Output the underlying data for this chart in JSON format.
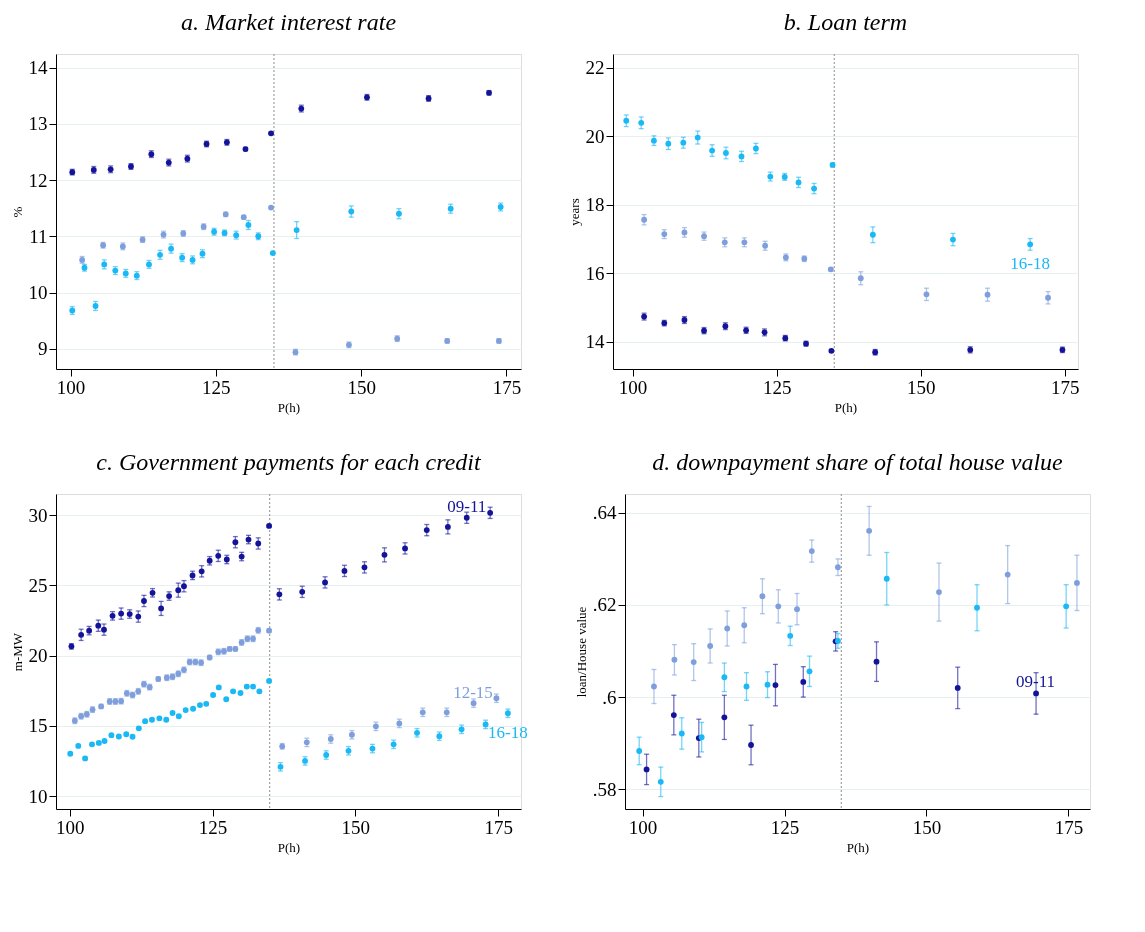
{
  "chart_data": [
    {
      "type": "scatter",
      "title": "a. Market interest rate",
      "xlabel": "P(h)",
      "ylabel": "%",
      "xlim": [
        97.5,
        177.5
      ],
      "ylim": [
        8.64,
        14.24
      ],
      "xticks": [
        100,
        125,
        150,
        175
      ],
      "yticks": [
        9,
        10,
        11,
        12,
        13,
        14
      ],
      "grid": "y",
      "marker": "circle",
      "ref_lines": [
        {
          "axis": "x",
          "value": 135,
          "color": "#a0a0a0",
          "line_style": "dotted"
        }
      ],
      "series": [
        {
          "color": "#14149a",
          "x": [
            100.3,
            104.0,
            106.9,
            110.4,
            113.9,
            116.9,
            120.1,
            123.4,
            126.9,
            130.1,
            134.5,
            139.7,
            151.0,
            161.6,
            172.0
          ],
          "values": [
            12.14,
            12.18,
            12.19,
            12.24,
            12.46,
            12.31,
            12.38,
            12.64,
            12.67,
            12.55,
            12.83,
            13.27,
            13.47,
            13.45,
            13.55
          ],
          "errors": [
            0.05,
            0.06,
            0.06,
            0.05,
            0.06,
            0.06,
            0.06,
            0.05,
            0.05,
            0.03,
            0.02,
            0.06,
            0.05,
            0.05,
            0.04
          ]
        },
        {
          "color": "#7f9fdc",
          "x": [
            102.0,
            105.6,
            109.0,
            112.4,
            116.0,
            119.4,
            122.9,
            126.7,
            129.8,
            134.5,
            138.7,
            147.9,
            156.2,
            164.8,
            173.7
          ],
          "values": [
            10.58,
            10.84,
            10.82,
            10.94,
            11.03,
            11.05,
            11.17,
            11.39,
            11.34,
            11.51,
            8.94,
            9.07,
            9.18,
            9.14,
            9.14
          ],
          "errors": [
            0.06,
            0.05,
            0.06,
            0.05,
            0.06,
            0.05,
            0.05,
            0.04,
            0.03,
            0.02,
            0.05,
            0.05,
            0.05,
            0.04,
            0.04
          ]
        },
        {
          "color": "#1ab8f5",
          "x": [
            100.3,
            102.4,
            104.3,
            105.8,
            107.7,
            109.5,
            111.4,
            113.5,
            115.4,
            117.3,
            119.2,
            121.0,
            122.7,
            124.7,
            126.5,
            128.5,
            130.6,
            132.3,
            134.8,
            138.9,
            148.3,
            156.5,
            165.4,
            174.0
          ],
          "values": [
            9.68,
            10.44,
            9.76,
            10.5,
            10.39,
            10.34,
            10.3,
            10.5,
            10.67,
            10.78,
            10.62,
            10.58,
            10.69,
            11.08,
            11.06,
            11.02,
            11.2,
            11.0,
            10.7,
            11.11,
            11.44,
            11.4,
            11.49,
            11.52
          ],
          "errors": [
            0.07,
            0.06,
            0.08,
            0.08,
            0.07,
            0.07,
            0.07,
            0.07,
            0.08,
            0.08,
            0.07,
            0.07,
            0.07,
            0.06,
            0.05,
            0.07,
            0.08,
            0.06,
            0.02,
            0.15,
            0.1,
            0.09,
            0.08,
            0.07
          ]
        }
      ]
    },
    {
      "type": "scatter",
      "title": "b. Loan term",
      "xlabel": "P(h)",
      "ylabel": "years",
      "xlim": [
        96.6,
        177.3
      ],
      "ylim": [
        13.2,
        22.4
      ],
      "xticks": [
        100,
        125,
        150,
        175
      ],
      "yticks": [
        14,
        16,
        18,
        20,
        22
      ],
      "grid": "y",
      "marker": "circle",
      "ref_lines": [
        {
          "axis": "x",
          "value": 135,
          "color": "#a0a0a0",
          "line_style": "dotted"
        }
      ],
      "series": [
        {
          "color": "#14149a",
          "x": [
            102.0,
            105.5,
            109.0,
            112.4,
            116.1,
            119.7,
            122.9,
            126.5,
            130.1,
            134.5,
            142.1,
            158.6,
            174.6
          ],
          "values": [
            14.73,
            14.54,
            14.63,
            14.32,
            14.45,
            14.33,
            14.27,
            14.1,
            13.94,
            13.73,
            13.69,
            13.76,
            13.76
          ],
          "errors": [
            0.1,
            0.08,
            0.1,
            0.09,
            0.1,
            0.09,
            0.1,
            0.08,
            0.07,
            0.04,
            0.08,
            0.09,
            0.08
          ]
        },
        {
          "color": "#7f9fdc",
          "x": [
            102.0,
            105.5,
            109.0,
            112.4,
            116.0,
            119.4,
            123.0,
            126.6,
            129.8,
            134.4,
            139.6,
            151.0,
            161.6,
            172.1
          ],
          "values": [
            17.56,
            17.14,
            17.19,
            17.08,
            16.9,
            16.9,
            16.8,
            16.46,
            16.42,
            16.11,
            15.85,
            15.38,
            15.37,
            15.28
          ],
          "errors": [
            0.15,
            0.13,
            0.14,
            0.12,
            0.13,
            0.13,
            0.13,
            0.1,
            0.08,
            0.05,
            0.19,
            0.18,
            0.19,
            0.18
          ]
        },
        {
          "name": "16-18",
          "color": "#1ab8f5",
          "x": [
            98.9,
            101.5,
            103.7,
            106.2,
            108.8,
            111.3,
            113.8,
            116.2,
            118.9,
            121.4,
            123.9,
            126.4,
            128.8,
            131.5,
            134.7,
            141.7,
            155.6,
            169.0
          ],
          "values": [
            20.45,
            20.39,
            19.87,
            19.78,
            19.81,
            19.96,
            19.58,
            19.51,
            19.41,
            19.64,
            18.82,
            18.81,
            18.65,
            18.47,
            19.16,
            17.12,
            16.98,
            16.84
          ],
          "errors": [
            0.17,
            0.17,
            0.14,
            0.17,
            0.16,
            0.19,
            0.17,
            0.17,
            0.15,
            0.15,
            0.13,
            0.1,
            0.15,
            0.15,
            0.05,
            0.23,
            0.18,
            0.17
          ]
        }
      ]
    },
    {
      "type": "scatter",
      "title": "c. Government payments for each credit",
      "xlabel": "P(h)",
      "ylabel": "m-MW",
      "xlim": [
        97.6,
        179.0
      ],
      "ylim": [
        9.09,
        31.5
      ],
      "xticks": [
        100,
        125,
        150,
        175
      ],
      "yticks": [
        10,
        15,
        20,
        25,
        30
      ],
      "grid": "y",
      "marker": "circle",
      "ref_lines": [
        {
          "axis": "x",
          "value": 135,
          "color": "#a0a0a0",
          "line_style": "dotted"
        }
      ],
      "annotations": [
        {
          "text": "09-11",
          "x": 169.5,
          "y": 30.58
        },
        {
          "text": "12-15",
          "x": 170.6,
          "y": 17.34
        }
      ],
      "series": [
        {
          "color": "#14149a",
          "x": [
            100.3,
            102.0,
            103.4,
            105.0,
            106.0,
            107.5,
            109.0,
            110.5,
            112.0,
            113.0,
            114.5,
            116.0,
            117.4,
            119.0,
            120.0,
            121.5,
            123.1,
            124.5,
            126.0,
            127.5,
            129.0,
            130.1,
            131.3,
            133.0,
            134.9,
            136.7,
            140.7,
            144.7,
            148.1,
            151.6,
            155.1,
            158.7,
            162.5,
            166.2,
            169.5,
            173.6
          ],
          "values": [
            20.66,
            21.48,
            21.78,
            22.13,
            21.85,
            22.83,
            22.99,
            22.96,
            22.78,
            23.89,
            24.47,
            23.36,
            24.24,
            24.66,
            24.94,
            25.71,
            26.0,
            26.75,
            27.1,
            26.84,
            28.07,
            27.05,
            28.26,
            27.98,
            29.23,
            24.36,
            24.54,
            25.21,
            26.03,
            26.28,
            27.17,
            27.63,
            28.93,
            29.16,
            29.81,
            30.16
          ],
          "errors": [
            0.2,
            0.4,
            0.3,
            0.4,
            0.4,
            0.3,
            0.4,
            0.3,
            0.4,
            0.4,
            0.3,
            0.5,
            0.3,
            0.5,
            0.4,
            0.3,
            0.4,
            0.3,
            0.4,
            0.3,
            0.4,
            0.3,
            0.3,
            0.4,
            0.1,
            0.4,
            0.4,
            0.4,
            0.4,
            0.4,
            0.5,
            0.4,
            0.4,
            0.5,
            0.4,
            0.4
          ]
        },
        {
          "color": "#7f9fdc",
          "x": [
            100.9,
            102.0,
            103.0,
            104.0,
            105.5,
            107.0,
            108.0,
            109.0,
            110.0,
            111.0,
            112.0,
            113.0,
            114.0,
            115.5,
            117.0,
            118.0,
            119.0,
            120.0,
            121.0,
            122.0,
            123.0,
            124.5,
            126.0,
            127.0,
            128.0,
            129.0,
            130.1,
            131.1,
            132.1,
            133.0,
            134.9,
            137.2,
            141.5,
            145.7,
            149.4,
            153.6,
            157.7,
            161.8,
            166.0,
            170.7,
            174.7
          ],
          "values": [
            15.37,
            15.69,
            15.83,
            16.16,
            16.39,
            16.74,
            16.74,
            16.76,
            17.32,
            17.2,
            17.46,
            17.97,
            17.76,
            18.34,
            18.43,
            18.5,
            18.71,
            18.99,
            19.55,
            19.55,
            19.5,
            19.87,
            20.27,
            20.31,
            20.48,
            20.48,
            20.94,
            21.2,
            21.2,
            21.8,
            21.78,
            13.55,
            13.83,
            14.07,
            14.37,
            14.97,
            15.18,
            15.97,
            15.97,
            16.62,
            16.97
          ],
          "errors": [
            0.2,
            0.2,
            0.2,
            0.2,
            0.15,
            0.2,
            0.2,
            0.2,
            0.2,
            0.2,
            0.2,
            0.2,
            0.2,
            0.15,
            0.2,
            0.2,
            0.2,
            0.2,
            0.2,
            0.2,
            0.2,
            0.15,
            0.2,
            0.2,
            0.15,
            0.15,
            0.2,
            0.2,
            0.2,
            0.2,
            0.1,
            0.2,
            0.3,
            0.3,
            0.3,
            0.3,
            0.3,
            0.3,
            0.3,
            0.3,
            0.3
          ]
        },
        {
          "name": "16-18",
          "color": "#1ab8f5",
          "x": [
            100.1,
            101.5,
            102.7,
            103.9,
            105.1,
            106.1,
            107.3,
            108.6,
            109.9,
            111.0,
            112.1,
            113.2,
            114.4,
            115.7,
            116.9,
            118.0,
            119.1,
            120.3,
            121.6,
            122.8,
            123.9,
            125.1,
            126.1,
            127.4,
            128.6,
            129.9,
            131.0,
            132.1,
            133.2,
            134.9,
            136.9,
            141.2,
            144.9,
            148.8,
            153.0,
            156.7,
            160.8,
            164.7,
            168.6,
            172.8,
            176.7
          ],
          "values": [
            13.02,
            13.58,
            12.69,
            13.69,
            13.79,
            13.93,
            14.34,
            14.25,
            14.41,
            14.23,
            14.83,
            15.34,
            15.44,
            15.54,
            15.44,
            15.92,
            15.69,
            16.13,
            16.22,
            16.48,
            16.57,
            17.2,
            17.74,
            16.9,
            17.46,
            17.34,
            17.8,
            17.8,
            17.46,
            18.2,
            12.09,
            12.51,
            12.93,
            13.23,
            13.39,
            13.69,
            14.51,
            14.27,
            14.76,
            15.11,
            15.9
          ],
          "errors": [
            0.1,
            0.1,
            0.1,
            0.1,
            0.1,
            0.1,
            0.1,
            0.1,
            0.1,
            0.1,
            0.1,
            0.1,
            0.1,
            0.1,
            0.1,
            0.1,
            0.1,
            0.1,
            0.1,
            0.1,
            0.1,
            0.1,
            0.1,
            0.1,
            0.1,
            0.1,
            0.1,
            0.1,
            0.1,
            0.1,
            0.3,
            0.3,
            0.3,
            0.3,
            0.3,
            0.3,
            0.3,
            0.3,
            0.3,
            0.3,
            0.3
          ]
        }
      ]
    },
    {
      "type": "scatter",
      "title": "d. downpayment share of total house value",
      "xlabel": "P(h)",
      "ylabel": "loan/House value",
      "xlim": [
        96.9,
        178.8
      ],
      "ylim": [
        0.5757,
        0.6441
      ],
      "xticks": [
        100,
        125,
        150,
        175
      ],
      "yticks": [
        {
          "value": 0.58,
          "label": ".58"
        },
        {
          "value": 0.6,
          "label": ".6"
        },
        {
          "value": 0.62,
          "label": ".62"
        },
        {
          "value": 0.64,
          "label": ".64"
        }
      ],
      "grid": "y",
      "marker": "circle",
      "ref_lines": [
        {
          "axis": "x",
          "value": 135,
          "color": "#a0a0a0",
          "line_style": "dotted"
        }
      ],
      "annotations": [
        {
          "text": "09-11",
          "x": 169.2,
          "y": 0.6032
        }
      ],
      "series": [
        {
          "color": "#14149a",
          "x": [
            100.7,
            105.5,
            109.9,
            114.4,
            119.1,
            123.4,
            128.3,
            134.0,
            141.2,
            155.5,
            169.3
          ],
          "values": [
            0.5843,
            0.5961,
            0.5911,
            0.5956,
            0.5896,
            0.6026,
            0.6033,
            0.6121,
            0.6077,
            0.602,
            0.6008
          ],
          "errors": [
            0.0033,
            0.0043,
            0.0041,
            0.0048,
            0.0043,
            0.0045,
            0.0033,
            0.0021,
            0.0043,
            0.0045,
            0.0045
          ]
        },
        {
          "color": "#7f9fdc",
          "x": [
            102.0,
            105.6,
            109.0,
            111.9,
            114.9,
            117.9,
            121.1,
            123.9,
            127.2,
            129.8,
            134.4,
            139.9,
            152.2,
            164.3,
            176.5
          ],
          "values": [
            0.6023,
            0.6081,
            0.6076,
            0.6111,
            0.6149,
            0.6156,
            0.6219,
            0.6197,
            0.6191,
            0.6317,
            0.6282,
            0.6361,
            0.6228,
            0.6266,
            0.6248
          ],
          "errors": [
            0.0037,
            0.0033,
            0.004,
            0.0037,
            0.0038,
            0.0038,
            0.0038,
            0.0036,
            0.0034,
            0.0024,
            0.0018,
            0.0053,
            0.0063,
            0.0063,
            0.006
          ]
        },
        {
          "color": "#1ab8f5",
          "x": [
            99.4,
            103.2,
            106.9,
            110.4,
            114.4,
            118.3,
            122.0,
            126.0,
            129.4,
            134.4,
            143.0,
            158.9,
            174.6
          ],
          "values": [
            0.5883,
            0.5816,
            0.5921,
            0.5913,
            0.6043,
            0.6023,
            0.6027,
            0.6133,
            0.6056,
            0.6122,
            0.6257,
            0.6194,
            0.6197
          ],
          "errors": [
            0.003,
            0.0032,
            0.0034,
            0.0032,
            0.0031,
            0.003,
            0.0028,
            0.0021,
            0.0033,
            0.0016,
            0.0057,
            0.005,
            0.0047
          ]
        }
      ]
    }
  ]
}
